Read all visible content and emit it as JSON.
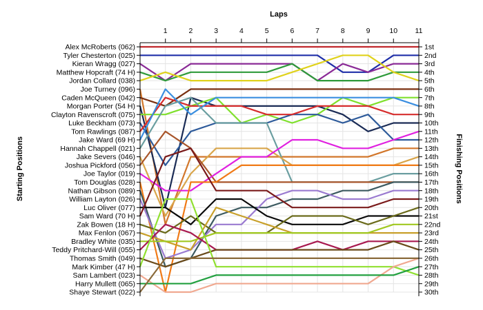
{
  "chart_data": {
    "type": "line",
    "title": "Laps",
    "ylabel_left": "Starting Positions",
    "ylabel_right": "Finishing Positions",
    "x": [
      0,
      1,
      2,
      3,
      4,
      5,
      6,
      7,
      8,
      9,
      10,
      11
    ],
    "x_tick_labels": [
      "1",
      "2",
      "3",
      "4",
      "5",
      "6",
      "7",
      "8",
      "9",
      "10",
      "11"
    ],
    "finishing_labels": [
      "1st",
      "2nd",
      "3rd",
      "4th",
      "5th",
      "6th",
      "7th",
      "8th",
      "9th",
      "10th",
      "11th",
      "12th",
      "13th",
      "14th",
      "15th",
      "16th",
      "17th",
      "18th",
      "19th",
      "20th",
      "21st",
      "22nd",
      "23rd",
      "24th",
      "25th",
      "26th",
      "27th",
      "28th",
      "29th",
      "30th"
    ],
    "ylim": [
      1,
      30
    ],
    "grid": true,
    "series": [
      {
        "name": "Alex McRoberts (062)",
        "color": "#c0282d",
        "values": [
          1,
          1,
          1,
          1,
          1,
          1,
          1,
          1,
          1,
          1,
          1,
          1
        ]
      },
      {
        "name": "Tyler Chesterton (025)",
        "color": "#1f2fa8",
        "values": [
          2,
          2,
          2,
          2,
          2,
          2,
          2,
          2,
          4,
          4,
          2,
          2
        ]
      },
      {
        "name": "Kieran Wragg (027)",
        "color": "#8a2a96",
        "values": [
          3,
          5,
          3,
          3,
          3,
          3,
          3,
          5,
          3,
          4,
          3,
          3
        ]
      },
      {
        "name": "Matthew Hopcraft (74 H)",
        "color": "#2e9a3a",
        "values": [
          4,
          5,
          4,
          4,
          4,
          4,
          3,
          5,
          5,
          5,
          4,
          4
        ]
      },
      {
        "name": "Jordan Collard (038)",
        "color": "#e0d21c",
        "values": [
          5,
          4,
          5,
          5,
          5,
          5,
          4,
          3,
          2,
          2,
          4,
          5
        ]
      },
      {
        "name": "Joe Turney (096)",
        "color": "#d2762a",
        "values": [
          6,
          22,
          14,
          14,
          14,
          14,
          14,
          14,
          14,
          14,
          13,
          13
        ]
      },
      {
        "name": "Caden McQueen (042)",
        "color": "#7a3010",
        "values": [
          7,
          8,
          6,
          6,
          6,
          6,
          6,
          6,
          6,
          6,
          6,
          6
        ]
      },
      {
        "name": "Morgan Porter (54 H)",
        "color": "#1a2b55",
        "values": [
          8,
          20,
          7,
          8,
          8,
          8,
          8,
          8,
          9,
          11,
          10,
          10
        ]
      },
      {
        "name": "Clayton Ravenscroft (075)",
        "color": "#7fe02c",
        "values": [
          9,
          9,
          8,
          7,
          10,
          9,
          10,
          9,
          7,
          8,
          7,
          7
        ]
      },
      {
        "name": "Luke Beckham (073)",
        "color": "#2d5a9a",
        "values": [
          10,
          15,
          11,
          10,
          10,
          10,
          9,
          9,
          10,
          9,
          12,
          12
        ]
      },
      {
        "name": "Tom Rawlings (087)",
        "color": "#d62d2d",
        "values": [
          11,
          7,
          8,
          8,
          8,
          9,
          9,
          8,
          8,
          8,
          9,
          9
        ]
      },
      {
        "name": "Jake Ward (69 H)",
        "color": "#3a8ee0",
        "values": [
          12,
          6,
          9,
          7,
          7,
          7,
          7,
          7,
          7,
          7,
          7,
          8
        ]
      },
      {
        "name": "Hannah Chappell (021)",
        "color": "#6a9ea0",
        "values": [
          13,
          8,
          7,
          10,
          10,
          10,
          17,
          17,
          17,
          17,
          16,
          16
        ]
      },
      {
        "name": "Jake Severs (046)",
        "color": "#d9a54a",
        "values": [
          14,
          21,
          16,
          13,
          13,
          13,
          15,
          15,
          15,
          15,
          15,
          14
        ]
      },
      {
        "name": "Joshua Pickford (056)",
        "color": "#a8552a",
        "values": [
          15,
          11,
          13,
          17,
          17,
          17,
          17,
          17,
          17,
          17,
          17,
          17
        ]
      },
      {
        "name": "Joe Taylor (019)",
        "color": "#e020e0",
        "values": [
          16,
          18,
          18,
          16,
          14,
          14,
          12,
          12,
          13,
          13,
          12,
          11
        ]
      },
      {
        "name": "Tom Douglas (028)",
        "color": "#f07a16",
        "values": [
          17,
          30,
          17,
          17,
          15,
          15,
          15,
          15,
          15,
          15,
          15,
          15
        ]
      },
      {
        "name": "Nathan Gibson (089)",
        "color": "#3c5a60",
        "values": [
          18,
          27,
          26,
          21,
          20,
          20,
          19,
          19,
          18,
          18,
          17,
          17
        ]
      },
      {
        "name": "William Layton (026)",
        "color": "#9a7ad0",
        "values": [
          19,
          26,
          25,
          22,
          22,
          19,
          18,
          18,
          19,
          19,
          18,
          18
        ]
      },
      {
        "name": "Luc Oliver (077)",
        "color": "#0a0a0a",
        "values": [
          20,
          20,
          22,
          19,
          19,
          21,
          22,
          22,
          22,
          21,
          21,
          21
        ]
      },
      {
        "name": "Sam Ward (70 H)",
        "color": "#7a1a1a",
        "values": [
          21,
          14,
          13,
          18,
          18,
          18,
          20,
          20,
          20,
          20,
          19,
          19
        ]
      },
      {
        "name": "Zak Bowen (18 H)",
        "color": "#6a6a1a",
        "values": [
          22,
          23,
          21,
          23,
          23,
          23,
          21,
          21,
          21,
          22,
          21,
          20
        ]
      },
      {
        "name": "Max Fenlon (067)",
        "color": "#c8a02a",
        "values": [
          23,
          24,
          25,
          20,
          21,
          22,
          23,
          23,
          23,
          23,
          23,
          23
        ]
      },
      {
        "name": "Bradley White (035)",
        "color": "#a0c820",
        "values": [
          24,
          24,
          24,
          23,
          23,
          23,
          23,
          23,
          23,
          23,
          22,
          22
        ]
      },
      {
        "name": "Teddy Pritchard-Will (055)",
        "color": "#a81a50",
        "values": [
          25,
          22,
          23,
          25,
          25,
          25,
          25,
          24,
          25,
          24,
          24,
          24
        ]
      },
      {
        "name": "Thomas Smith (049)",
        "color": "#6a4a1a",
        "values": [
          26,
          27,
          26,
          25,
          25,
          25,
          25,
          25,
          25,
          25,
          24,
          25
        ]
      },
      {
        "name": "Mark Kimber (47 H)",
        "color": "#90e030",
        "values": [
          27,
          19,
          19,
          27,
          27,
          27,
          27,
          27,
          27,
          27,
          27,
          28
        ]
      },
      {
        "name": "Sam Lambert (023)",
        "color": "#f0a890",
        "values": [
          28,
          30,
          30,
          29,
          29,
          29,
          29,
          29,
          29,
          29,
          27,
          26
        ]
      },
      {
        "name": "Harry Mullett (065)",
        "color": "#23a040",
        "values": [
          29,
          29,
          29,
          28,
          28,
          28,
          28,
          28,
          28,
          28,
          28,
          27
        ]
      },
      {
        "name": "Shaye Stewart (022)",
        "color": "#8a6a3a",
        "values": [
          30,
          26,
          26,
          26,
          26,
          26,
          26,
          26,
          26,
          26,
          26,
          26
        ]
      }
    ]
  }
}
